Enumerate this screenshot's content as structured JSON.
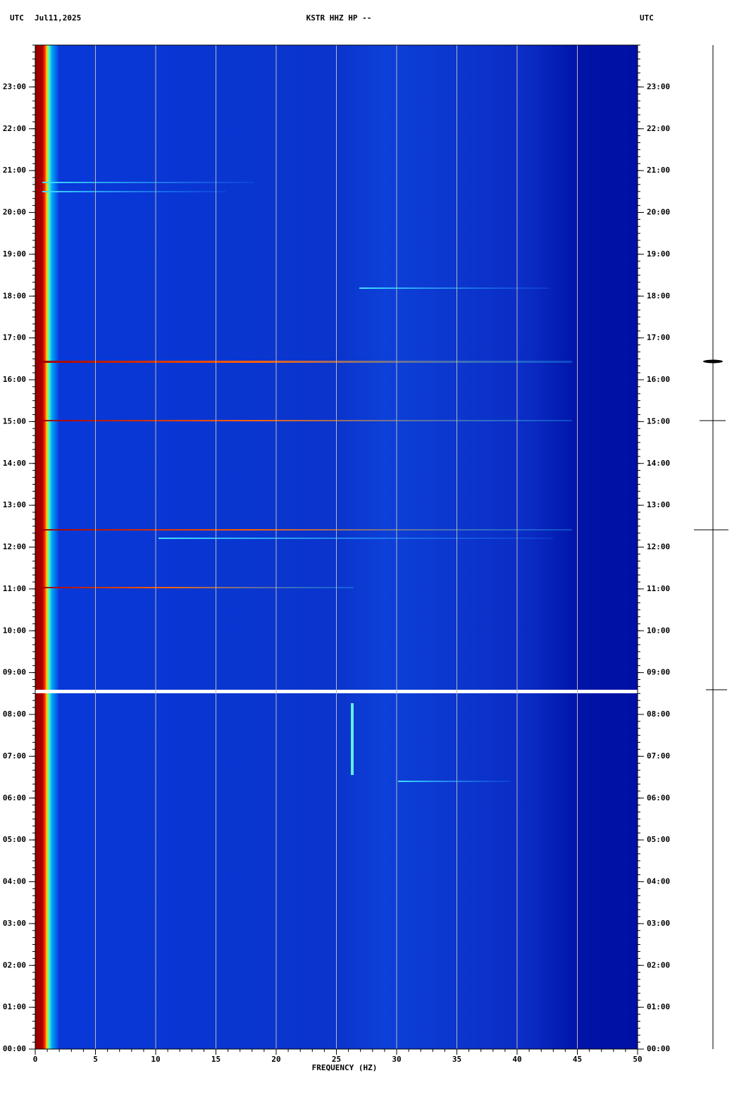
{
  "chart_data": {
    "type": "spectrogram",
    "timezone": "UTC",
    "date": "Jul11,2025",
    "title": "KSTR HHZ HP --",
    "xlabel": "FREQUENCY (HZ)",
    "xlim": [
      0,
      50
    ],
    "xticks": [
      0,
      5,
      10,
      15,
      20,
      25,
      30,
      35,
      40,
      45,
      50
    ],
    "ylim": [
      0,
      24
    ],
    "yticks": [
      {
        "value": 0,
        "label": "00:00"
      },
      {
        "value": 1,
        "label": "01:00"
      },
      {
        "value": 2,
        "label": "02:00"
      },
      {
        "value": 3,
        "label": "03:00"
      },
      {
        "value": 4,
        "label": "04:00"
      },
      {
        "value": 5,
        "label": "05:00"
      },
      {
        "value": 6,
        "label": "06:00"
      },
      {
        "value": 7,
        "label": "07:00"
      },
      {
        "value": 8,
        "label": "08:00"
      },
      {
        "value": 9,
        "label": "09:00"
      },
      {
        "value": 10,
        "label": "10:00"
      },
      {
        "value": 11,
        "label": "11:00"
      },
      {
        "value": 12,
        "label": "12:00"
      },
      {
        "value": 13,
        "label": "13:00"
      },
      {
        "value": 14,
        "label": "14:00"
      },
      {
        "value": 15,
        "label": "15:00"
      },
      {
        "value": 16,
        "label": "16:00"
      },
      {
        "value": 17,
        "label": "17:00"
      },
      {
        "value": 18,
        "label": "18:00"
      },
      {
        "value": 19,
        "label": "19:00"
      },
      {
        "value": 20,
        "label": "20:00"
      },
      {
        "value": 21,
        "label": "21:00"
      },
      {
        "value": 22,
        "label": "22:00"
      },
      {
        "value": 23,
        "label": "23:00"
      }
    ],
    "grid": true
  }
}
